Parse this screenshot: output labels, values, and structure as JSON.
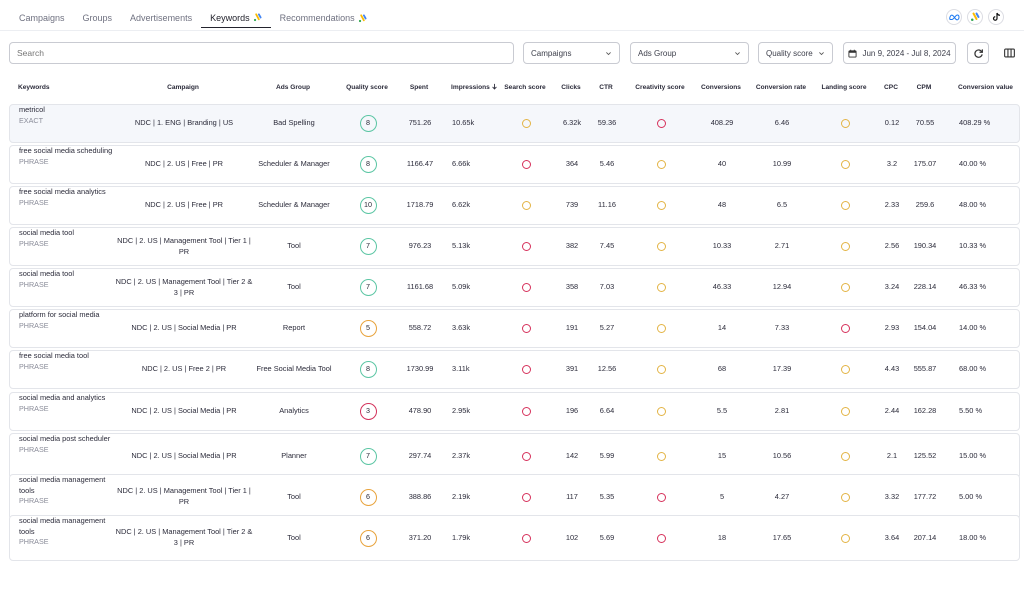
{
  "tabs": [
    {
      "label": "Campaigns",
      "active": false,
      "google_ads": false
    },
    {
      "label": "Groups",
      "active": false,
      "google_ads": false
    },
    {
      "label": "Advertisements",
      "active": false,
      "google_ads": false
    },
    {
      "label": "Keywords",
      "active": true,
      "google_ads": true
    },
    {
      "label": "Recommendations",
      "active": false,
      "google_ads": true
    }
  ],
  "platforms": [
    "meta-icon",
    "google-ads-icon",
    "tiktok-icon"
  ],
  "filters": {
    "search_placeholder": "Search",
    "campaigns_label": "Campaigns",
    "ads_group_label": "Ads Group",
    "quality_score_label": "Quality score",
    "date_range": "Jun 9, 2024 - Jul 8, 2024"
  },
  "columns": {
    "keywords": "Keywords",
    "campaign": "Campaign",
    "ads_group": "Ads Group",
    "quality_score": "Quality score",
    "spent": "Spent",
    "impressions": "Impressions",
    "search_score": "Search score",
    "clicks": "Clicks",
    "ctr": "CTR",
    "creativity_score": "Creativity score",
    "conversions": "Conversions",
    "conversion_rate": "Conversion rate",
    "landing_score": "Landing score",
    "cpc": "CPC",
    "cpm": "CPM",
    "conversion_value": "Conversion value"
  },
  "colors": {
    "good": "#5cc6a4",
    "medium": "#e8a33d",
    "bad": "#d3325b",
    "dot_yellow": "#e3b445",
    "dot_red": "#d6325c"
  },
  "rows": [
    {
      "keyword": "metricol",
      "match": "EXACT",
      "campaign": "NDC | 1. ENG | Branding | US",
      "ads_group": "Bad Spelling",
      "quality_score": "8",
      "qs_level": "good",
      "spent": "751.26",
      "impressions": "10.65k",
      "search_score": "yellow",
      "clicks": "6.32k",
      "ctr": "59.36",
      "creativity_score": "red",
      "conversions": "408.29",
      "conversion_rate": "6.46",
      "landing_score": "yellow",
      "cpc": "0.12",
      "cpm": "70.55",
      "conversion_value": "408.29 %"
    },
    {
      "keyword": "free social media scheduling",
      "match": "PHRASE",
      "campaign": "NDC | 2. US | Free | PR",
      "ads_group": "Scheduler & Manager",
      "quality_score": "8",
      "qs_level": "good",
      "spent": "1166.47",
      "impressions": "6.66k",
      "search_score": "red",
      "clicks": "364",
      "ctr": "5.46",
      "creativity_score": "yellow",
      "conversions": "40",
      "conversion_rate": "10.99",
      "landing_score": "yellow",
      "cpc": "3.2",
      "cpm": "175.07",
      "conversion_value": "40.00 %"
    },
    {
      "keyword": "free social media analytics",
      "match": "PHRASE",
      "campaign": "NDC | 2. US | Free | PR",
      "ads_group": "Scheduler & Manager",
      "quality_score": "10",
      "qs_level": "good",
      "spent": "1718.79",
      "impressions": "6.62k",
      "search_score": "yellow",
      "clicks": "739",
      "ctr": "11.16",
      "creativity_score": "yellow",
      "conversions": "48",
      "conversion_rate": "6.5",
      "landing_score": "yellow",
      "cpc": "2.33",
      "cpm": "259.6",
      "conversion_value": "48.00 %"
    },
    {
      "keyword": "social media tool",
      "match": "PHRASE",
      "campaign": "NDC | 2. US | Management Tool | Tier 1 | PR",
      "ads_group": "Tool",
      "quality_score": "7",
      "qs_level": "good",
      "spent": "976.23",
      "impressions": "5.13k",
      "search_score": "red",
      "clicks": "382",
      "ctr": "7.45",
      "creativity_score": "yellow",
      "conversions": "10.33",
      "conversion_rate": "2.71",
      "landing_score": "yellow",
      "cpc": "2.56",
      "cpm": "190.34",
      "conversion_value": "10.33 %"
    },
    {
      "keyword": "social media tool",
      "match": "PHRASE",
      "campaign": "NDC | 2. US | Management Tool | Tier 2 & 3 | PR",
      "ads_group": "Tool",
      "quality_score": "7",
      "qs_level": "good",
      "spent": "1161.68",
      "impressions": "5.09k",
      "search_score": "red",
      "clicks": "358",
      "ctr": "7.03",
      "creativity_score": "yellow",
      "conversions": "46.33",
      "conversion_rate": "12.94",
      "landing_score": "yellow",
      "cpc": "3.24",
      "cpm": "228.14",
      "conversion_value": "46.33 %"
    },
    {
      "keyword": "platform for social media",
      "match": "PHRASE",
      "campaign": "NDC | 2. US | Social Media | PR",
      "ads_group": "Report",
      "quality_score": "5",
      "qs_level": "medium",
      "spent": "558.72",
      "impressions": "3.63k",
      "search_score": "red",
      "clicks": "191",
      "ctr": "5.27",
      "creativity_score": "yellow",
      "conversions": "14",
      "conversion_rate": "7.33",
      "landing_score": "red",
      "cpc": "2.93",
      "cpm": "154.04",
      "conversion_value": "14.00 %"
    },
    {
      "keyword": "free social media tool",
      "match": "PHRASE",
      "campaign": "NDC | 2. US | Free 2 | PR",
      "ads_group": "Free Social Media Tool",
      "quality_score": "8",
      "qs_level": "good",
      "spent": "1730.99",
      "impressions": "3.11k",
      "search_score": "red",
      "clicks": "391",
      "ctr": "12.56",
      "creativity_score": "yellow",
      "conversions": "68",
      "conversion_rate": "17.39",
      "landing_score": "yellow",
      "cpc": "4.43",
      "cpm": "555.87",
      "conversion_value": "68.00 %"
    },
    {
      "keyword": "social media and analytics",
      "match": "PHRASE",
      "campaign": "NDC | 2. US | Social Media | PR",
      "ads_group": "Analytics",
      "quality_score": "3",
      "qs_level": "bad",
      "spent": "478.90",
      "impressions": "2.95k",
      "search_score": "red",
      "clicks": "196",
      "ctr": "6.64",
      "creativity_score": "yellow",
      "conversions": "5.5",
      "conversion_rate": "2.81",
      "landing_score": "yellow",
      "cpc": "2.44",
      "cpm": "162.28",
      "conversion_value": "5.50 %"
    },
    {
      "keyword": "social media post scheduler",
      "match": "PHRASE",
      "campaign": "NDC | 2. US | Social Media | PR",
      "ads_group": "Planner",
      "quality_score": "7",
      "qs_level": "good",
      "spent": "297.74",
      "impressions": "2.37k",
      "search_score": "red",
      "clicks": "142",
      "ctr": "5.99",
      "creativity_score": "yellow",
      "conversions": "15",
      "conversion_rate": "10.56",
      "landing_score": "yellow",
      "cpc": "2.1",
      "cpm": "125.52",
      "conversion_value": "15.00 %"
    },
    {
      "keyword": "social media management tools",
      "match": "PHRASE",
      "campaign": "NDC | 2. US | Management Tool | Tier 1 | PR",
      "ads_group": "Tool",
      "quality_score": "6",
      "qs_level": "medium",
      "spent": "388.86",
      "impressions": "2.19k",
      "search_score": "red",
      "clicks": "117",
      "ctr": "5.35",
      "creativity_score": "red",
      "conversions": "5",
      "conversion_rate": "4.27",
      "landing_score": "yellow",
      "cpc": "3.32",
      "cpm": "177.72",
      "conversion_value": "5.00 %"
    },
    {
      "keyword": "social media management tools",
      "match": "PHRASE",
      "campaign": "NDC | 2. US | Management Tool | Tier 2 & 3 | PR",
      "ads_group": "Tool",
      "quality_score": "6",
      "qs_level": "medium",
      "spent": "371.20",
      "impressions": "1.79k",
      "search_score": "red",
      "clicks": "102",
      "ctr": "5.69",
      "creativity_score": "red",
      "conversions": "18",
      "conversion_rate": "17.65",
      "landing_score": "yellow",
      "cpc": "3.64",
      "cpm": "207.14",
      "conversion_value": "18.00 %"
    }
  ]
}
